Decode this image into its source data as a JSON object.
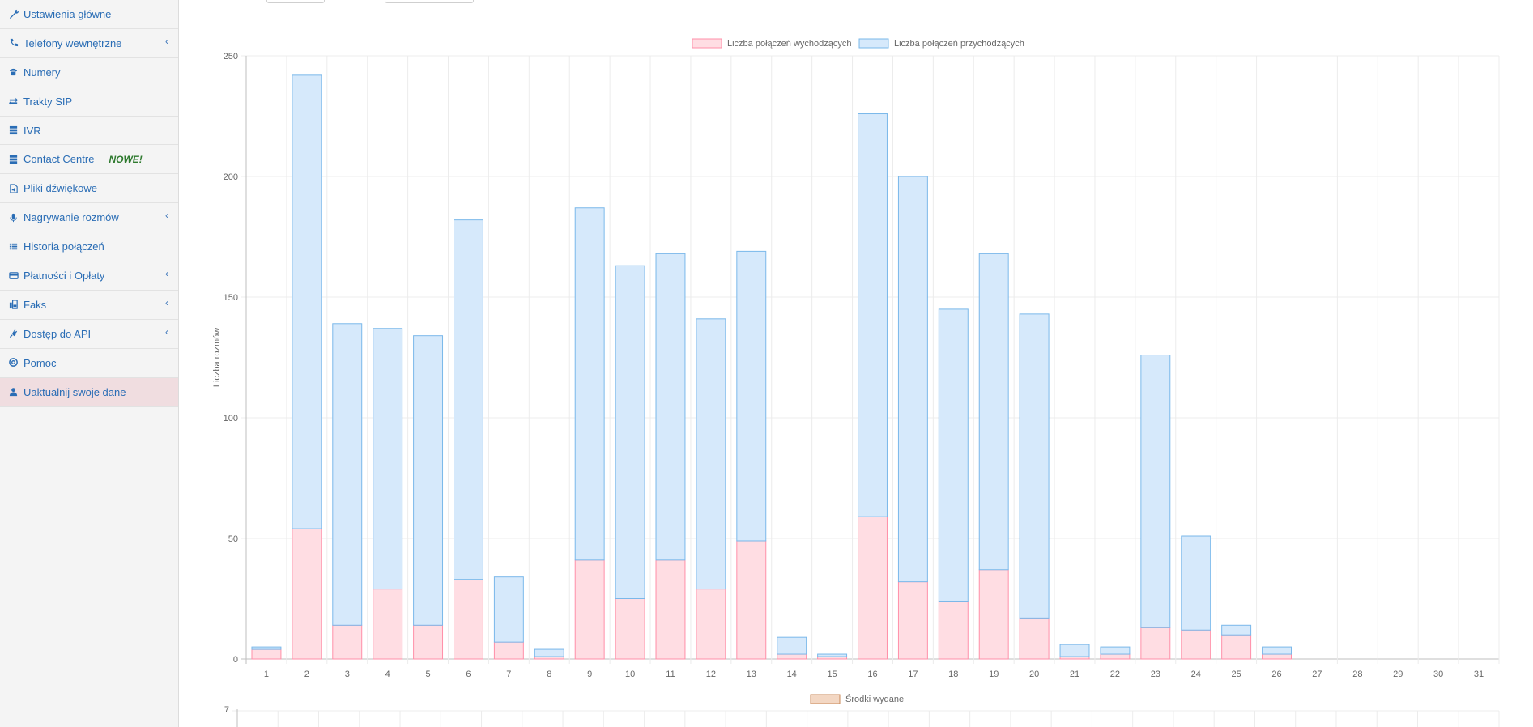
{
  "sidebar": {
    "items": [
      {
        "label": "Ustawienia główne",
        "icon": "wrench-icon",
        "chevron": false
      },
      {
        "label": "Telefony wewnętrzne",
        "icon": "phone-icon",
        "chevron": true
      },
      {
        "label": "Numery",
        "icon": "phone-square-icon",
        "chevron": false
      },
      {
        "label": "Trakty SIP",
        "icon": "exchange-icon",
        "chevron": false
      },
      {
        "label": "IVR",
        "icon": "server-icon",
        "chevron": false
      },
      {
        "label": "Contact Centre",
        "icon": "server-icon",
        "chevron": false,
        "badge": "NOWE!"
      },
      {
        "label": "Pliki dźwiękowe",
        "icon": "audio-file-icon",
        "chevron": false
      },
      {
        "label": "Nagrywanie rozmów",
        "icon": "microphone-icon",
        "chevron": true
      },
      {
        "label": "Historia połączeń",
        "icon": "list-icon",
        "chevron": false
      },
      {
        "label": "Płatności i Opłaty",
        "icon": "credit-card-icon",
        "chevron": true
      },
      {
        "label": "Faks",
        "icon": "fax-icon",
        "chevron": true
      },
      {
        "label": "Dostęp do API",
        "icon": "plug-icon",
        "chevron": true
      },
      {
        "label": "Pomoc",
        "icon": "life-ring-icon",
        "chevron": false
      },
      {
        "label": "Uaktualnij swoje dane",
        "icon": "user-icon",
        "chevron": false,
        "active": true
      }
    ]
  },
  "colors": {
    "outgoing_fill": "#ffdde3",
    "outgoing_stroke": "#ff8fa8",
    "incoming_fill": "#d6e9fb",
    "incoming_stroke": "#7ab8ea",
    "spent_fill": "#f3d7c3",
    "spent_stroke": "#c98a5a",
    "link": "#2a6db5",
    "badge": "#2f7a2f"
  },
  "chart_data": [
    {
      "type": "bar",
      "stacked": true,
      "categories": [
        "1",
        "2",
        "3",
        "4",
        "5",
        "6",
        "7",
        "8",
        "9",
        "10",
        "11",
        "12",
        "13",
        "14",
        "15",
        "16",
        "17",
        "18",
        "19",
        "20",
        "21",
        "22",
        "23",
        "24",
        "25",
        "26",
        "27",
        "28",
        "29",
        "30",
        "31"
      ],
      "series": [
        {
          "name": "Liczba połączeń wychodzących",
          "values": [
            4,
            54,
            14,
            29,
            14,
            33,
            7,
            1,
            41,
            25,
            41,
            29,
            49,
            2,
            1,
            59,
            32,
            24,
            37,
            17,
            1,
            2,
            13,
            12,
            10,
            2,
            0,
            0,
            0,
            0,
            0
          ]
        },
        {
          "name": "Liczba połączeń przychodzących",
          "values": [
            1,
            188,
            125,
            108,
            120,
            149,
            27,
            3,
            146,
            138,
            127,
            112,
            120,
            7,
            1,
            167,
            168,
            121,
            131,
            126,
            5,
            3,
            113,
            39,
            4,
            3,
            0,
            0,
            0,
            0,
            0
          ]
        }
      ],
      "ylabel": "Liczba rozmów",
      "xlabel": "",
      "ylim": [
        0,
        250
      ],
      "yticks": [
        0,
        50,
        100,
        150,
        200,
        250
      ],
      "grid": true,
      "legend": "top-center"
    },
    {
      "type": "bar",
      "series": [
        {
          "name": "Środki wydane",
          "values": []
        }
      ],
      "yticks_visible": [
        7
      ],
      "legend": "top-center"
    }
  ]
}
